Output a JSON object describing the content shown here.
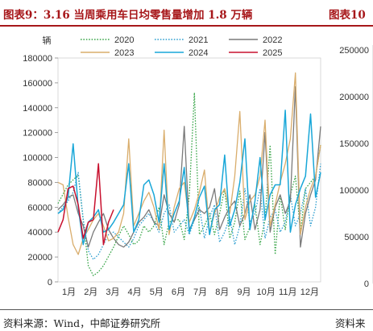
{
  "header": {
    "title_left": "图表9：3.16 当周乘用车日均零售量增加 1.8 万辆",
    "title_right": "图表10"
  },
  "footer": {
    "source_left": "资料来源：Wind，中邮证券研究所",
    "source_right": "资料来"
  },
  "colors": {
    "2020": "#3aa64a",
    "2021": "#2f9fd0",
    "2022": "#7a7a7a",
    "2023": "#d9ad6c",
    "2024": "#19a7d8",
    "2025": "#c8102e",
    "accent": "#a7171a"
  },
  "chart_data": [
    {
      "type": "line",
      "ylabel": "辆",
      "ylim": [
        0,
        180000
      ],
      "y_ticks": [
        "0",
        "20000",
        "40000",
        "60000",
        "80000",
        "100000",
        "120000",
        "140000",
        "160000",
        "180000"
      ],
      "x_ticks": [
        "1月",
        "2月",
        "3月",
        "4月",
        "5月",
        "6月",
        "7月",
        "8月",
        "9月",
        "10月",
        "11月",
        "12月"
      ],
      "x_range_weeks": [
        1,
        53
      ],
      "legend": "top",
      "series": [
        {
          "name": "2020",
          "style": "dotted",
          "x": [
            1,
            3,
            5,
            6,
            7,
            8,
            9,
            10,
            12,
            13,
            14,
            15,
            16,
            17,
            18,
            19,
            20,
            21,
            22,
            23,
            24,
            25,
            26,
            27,
            28,
            29,
            30,
            31,
            32,
            33,
            34,
            35,
            36,
            37,
            38,
            39,
            40,
            41,
            42,
            43,
            44,
            45,
            46,
            47,
            48,
            49,
            50,
            51,
            52,
            53
          ],
          "values": [
            63000,
            78000,
            86000,
            50000,
            13000,
            5000,
            8000,
            13000,
            28000,
            37000,
            45000,
            38000,
            30000,
            33000,
            45000,
            40000,
            45000,
            60000,
            30000,
            48000,
            50000,
            50000,
            34000,
            70000,
            152000,
            38000,
            45000,
            55000,
            38000,
            55000,
            75000,
            35000,
            48000,
            73000,
            34000,
            44000,
            62000,
            30000,
            50000,
            110000,
            22000,
            70000,
            42000,
            70000,
            85000,
            40000,
            75000,
            80000,
            85000,
            110000
          ]
        },
        {
          "name": "2021",
          "style": "dotted",
          "x": [
            1,
            2,
            3,
            4,
            5,
            6,
            7,
            8,
            9,
            10,
            11,
            12,
            13,
            14,
            15,
            16,
            17,
            18,
            19,
            20,
            21,
            22,
            23,
            24,
            25,
            26,
            27,
            28,
            29,
            30,
            31,
            32,
            33,
            34,
            35,
            36,
            37,
            38,
            39,
            40,
            41,
            42,
            43,
            44,
            45,
            46,
            47,
            48,
            49,
            50,
            51,
            52,
            53
          ],
          "values": [
            55000,
            60000,
            65000,
            72000,
            88000,
            50000,
            25000,
            18000,
            22000,
            30000,
            38000,
            40000,
            36000,
            32000,
            28000,
            35000,
            45000,
            50000,
            55000,
            48000,
            40000,
            55000,
            62000,
            40000,
            45000,
            50000,
            38000,
            50000,
            60000,
            35000,
            52000,
            62000,
            32000,
            40000,
            52000,
            30000,
            45000,
            75000,
            48000,
            55000,
            75000,
            35000,
            52000,
            58000,
            40000,
            48000,
            70000,
            45000,
            55000,
            75000,
            45000,
            60000,
            95000
          ]
        },
        {
          "name": "2022",
          "style": "solid",
          "x": [
            1,
            2,
            3,
            4,
            5,
            6,
            7,
            8,
            9,
            10,
            11,
            12,
            13,
            14,
            15,
            16,
            17,
            18,
            19,
            20,
            21,
            22,
            23,
            24,
            25,
            26,
            27,
            28,
            29,
            30,
            31,
            32,
            33,
            34,
            35,
            36,
            37,
            38,
            39,
            40,
            41,
            42,
            43,
            44,
            45,
            46,
            47,
            48,
            49,
            50,
            51,
            52,
            53
          ],
          "values": [
            58000,
            62000,
            68000,
            70000,
            55000,
            45000,
            28000,
            40000,
            48000,
            55000,
            42000,
            35000,
            30000,
            28000,
            32000,
            40000,
            48000,
            52000,
            58000,
            48000,
            45000,
            70000,
            55000,
            48000,
            62000,
            125000,
            42000,
            50000,
            58000,
            55000,
            60000,
            75000,
            42000,
            52000,
            60000,
            65000,
            45000,
            55000,
            70000,
            42000,
            58000,
            120000,
            40000,
            60000,
            70000,
            55000,
            65000,
            157000,
            28000,
            55000,
            70000,
            82000,
            125000
          ]
        },
        {
          "name": "2023",
          "style": "solid",
          "x": [
            1,
            2,
            3,
            4,
            5,
            6,
            7,
            8,
            9,
            10,
            11,
            12,
            13,
            14,
            15,
            16,
            17,
            18,
            19,
            20,
            21,
            22,
            23,
            24,
            25,
            26,
            27,
            28,
            29,
            30,
            31,
            32,
            33,
            34,
            35,
            36,
            37,
            38,
            39,
            40,
            41,
            42,
            43,
            44,
            45,
            46,
            47,
            48,
            49,
            50,
            51,
            52,
            53
          ],
          "values": [
            80000,
            78000,
            52000,
            30000,
            22000,
            35000,
            42000,
            50000,
            55000,
            45000,
            33000,
            35000,
            40000,
            55000,
            115000,
            45000,
            55000,
            65000,
            72000,
            60000,
            42000,
            122000,
            38000,
            60000,
            75000,
            80000,
            48000,
            58000,
            72000,
            90000,
            40000,
            55000,
            68000,
            75000,
            55000,
            85000,
            137000,
            50000,
            65000,
            70000,
            85000,
            130000,
            45000,
            62000,
            80000,
            95000,
            115000,
            168000,
            38000,
            60000,
            75000,
            85000,
            110000
          ]
        },
        {
          "name": "2024",
          "style": "solid",
          "x": [
            1,
            2,
            3,
            4,
            5,
            6,
            7,
            8,
            9,
            10,
            11,
            12,
            13,
            14,
            15,
            16,
            17,
            18,
            19,
            20,
            21,
            22,
            23,
            24,
            25,
            26,
            27,
            28,
            29,
            30,
            31,
            32,
            33,
            34,
            35,
            36,
            37,
            38,
            39,
            40,
            41,
            42,
            43,
            44,
            45,
            46,
            47,
            48,
            49,
            50,
            51,
            52,
            53
          ],
          "values": [
            55000,
            58000,
            68000,
            111000,
            60000,
            30000,
            48000,
            52000,
            58000,
            40000,
            42000,
            48000,
            55000,
            62000,
            95000,
            40000,
            50000,
            78000,
            82000,
            70000,
            48000,
            95000,
            42000,
            55000,
            65000,
            92000,
            40000,
            52000,
            68000,
            77000,
            38000,
            58000,
            62000,
            102000,
            45000,
            58000,
            80000,
            115000,
            42000,
            65000,
            100000,
            50000,
            70000,
            78000,
            78000,
            138000,
            40000,
            62000,
            75000,
            85000,
            135000,
            68000,
            88000
          ]
        },
        {
          "name": "2025",
          "style": "solid",
          "x": [
            1,
            2,
            3,
            4,
            5,
            6,
            7,
            8,
            9,
            10,
            11,
            12
          ],
          "values": [
            40000,
            50000,
            75000,
            77000,
            62000,
            35000,
            48000,
            50000,
            95000,
            30000,
            48000,
            58000
          ]
        }
      ]
    },
    {
      "type": "line",
      "ylim": [
        0,
        250000
      ],
      "y_ticks": [
        "0",
        "50000",
        "100000",
        "150000",
        "200000",
        "250000"
      ],
      "series": []
    }
  ]
}
